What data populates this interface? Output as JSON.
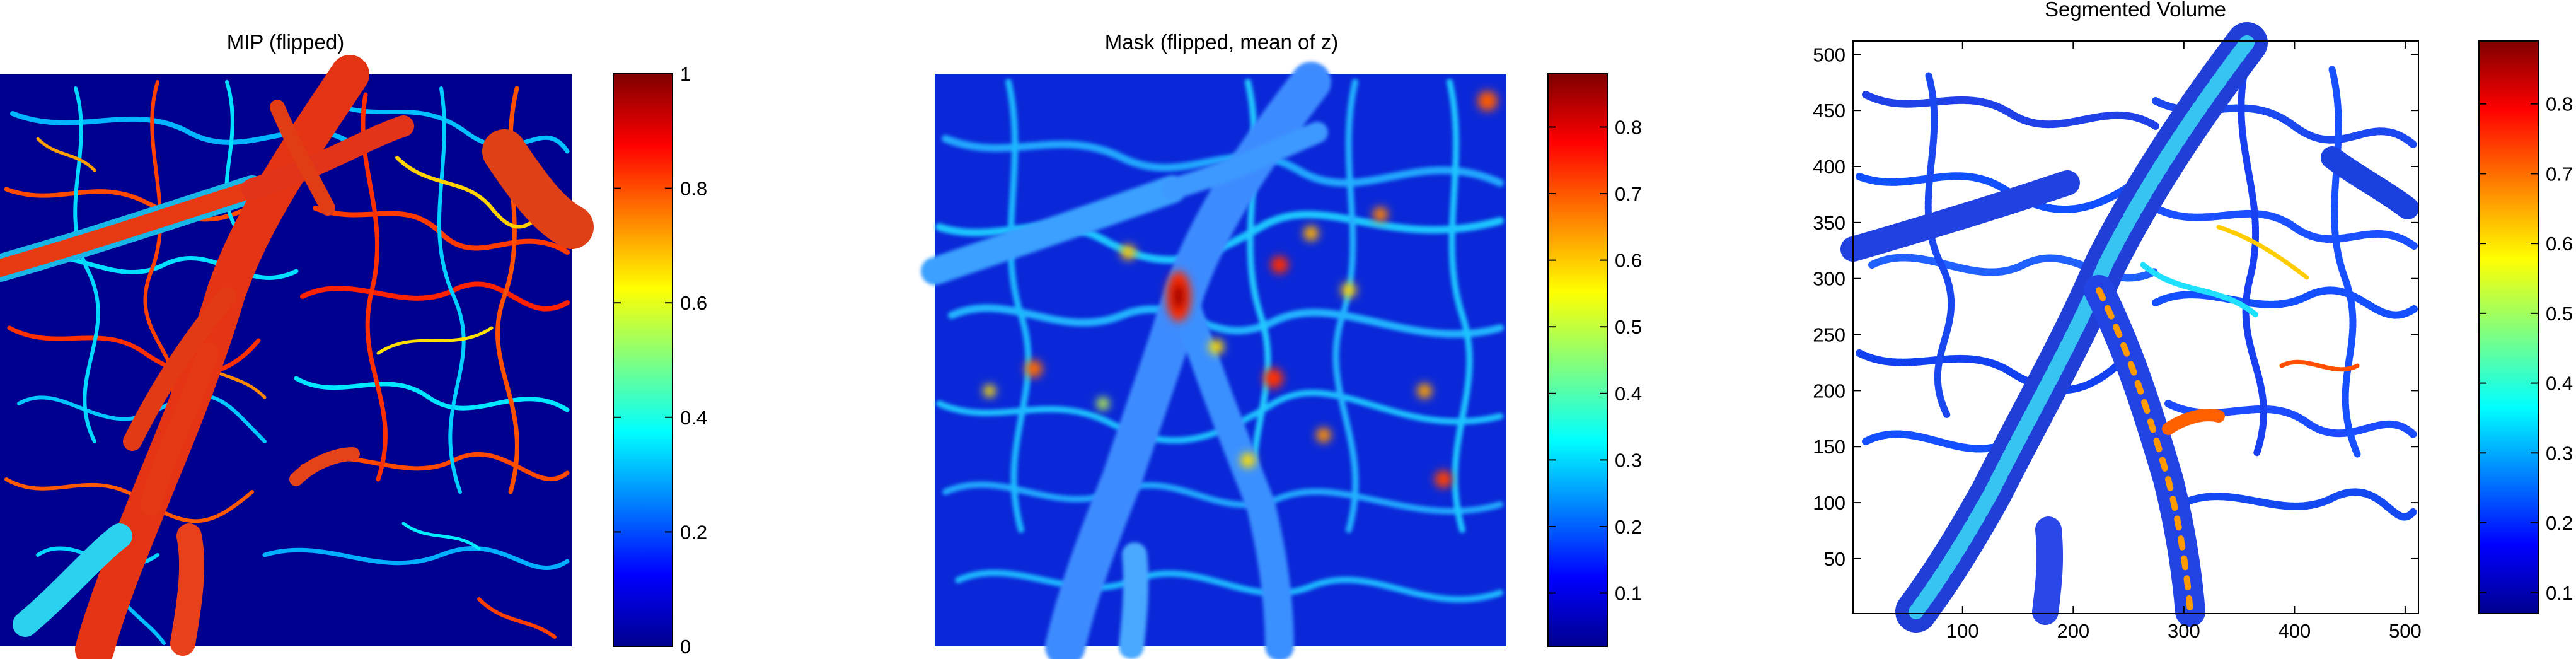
{
  "colormap": "jet",
  "colors": {
    "jet_stops": [
      "#00008f",
      "#0000ff",
      "#00ffff",
      "#ffff00",
      "#ff0000",
      "#800000"
    ],
    "background": "#ffffff",
    "axes": "#000000"
  },
  "chart_data": [
    {
      "type": "heatmap",
      "title": "MIP (flipped)",
      "description_of_content": "",
      "colorbar": {
        "clim": [
          0,
          1
        ],
        "ticks": [
          0,
          0.2,
          0.4,
          0.6,
          0.8,
          1
        ],
        "tick_labels": [
          "0",
          "0.2",
          "0.4",
          "0.6",
          "0.8",
          "1"
        ]
      },
      "axes_visible": false
    },
    {
      "type": "heatmap",
      "title": "Mask (flipped, mean of z)",
      "colorbar": {
        "clim": [
          0.02,
          0.88
        ],
        "ticks": [
          0.1,
          0.2,
          0.3,
          0.4,
          0.5,
          0.6,
          0.7,
          0.8
        ],
        "tick_labels": [
          "0.1",
          "0.2",
          "0.3",
          "0.4",
          "0.5",
          "0.6",
          "0.7",
          "0.8"
        ]
      },
      "axes_visible": false
    },
    {
      "type": "heatmap",
      "title": "Segmented Volume",
      "xlim": [
        1,
        512
      ],
      "ylim": [
        1,
        512
      ],
      "xticks": [
        100,
        200,
        300,
        400,
        500
      ],
      "yticks": [
        50,
        100,
        150,
        200,
        250,
        300,
        350,
        400,
        450,
        500
      ],
      "colorbar": {
        "clim": [
          0.07,
          0.89
        ],
        "ticks": [
          0.1,
          0.2,
          0.3,
          0.4,
          0.5,
          0.6,
          0.7,
          0.8
        ],
        "tick_labels": [
          "0.1",
          "0.2",
          "0.3",
          "0.4",
          "0.5",
          "0.6",
          "0.7",
          "0.8"
        ]
      },
      "axes_visible": true,
      "background": "white"
    }
  ]
}
